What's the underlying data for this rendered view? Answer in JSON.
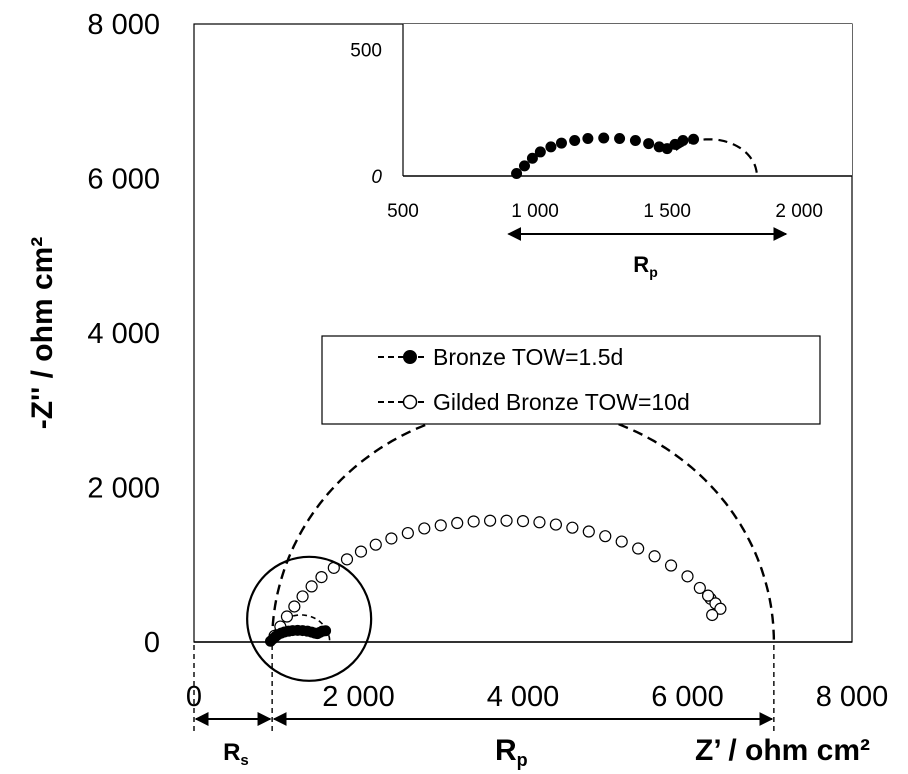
{
  "chart_data": {
    "type": "scatter",
    "xlabel": "Z’ / ohm cm²",
    "ylabel": "-Z'' / ohm cm²",
    "xlim": [
      0,
      8000
    ],
    "ylim": [
      0,
      8000
    ],
    "x_ticks": [
      0,
      2000,
      4000,
      6000,
      8000
    ],
    "y_ticks": [
      0,
      2000,
      4000,
      6000,
      8000
    ],
    "x_tick_labels": [
      "0",
      "2 000",
      "4 000",
      "6 000",
      "8 000"
    ],
    "y_tick_labels": [
      "0",
      "2 000",
      "4 000",
      "6 000",
      "8 000"
    ],
    "legend_position": "center-right",
    "series": [
      {
        "name": "Bronze TOW=1.5d",
        "marker": "filled-circle",
        "color": "#000000",
        "x": [
          930,
          960,
          990,
          1020,
          1060,
          1100,
          1150,
          1200,
          1260,
          1320,
          1380,
          1430,
          1470,
          1500,
          1530,
          1560,
          1600
        ],
        "y": [
          10,
          40,
          70,
          95,
          115,
          130,
          140,
          148,
          150,
          148,
          140,
          128,
          115,
          108,
          125,
          140,
          145
        ]
      },
      {
        "name": "Gilded Bronze TOW=10d",
        "marker": "open-circle",
        "color": "#000000",
        "x": [
          980,
          1050,
          1130,
          1220,
          1320,
          1430,
          1550,
          1700,
          1860,
          2030,
          2210,
          2400,
          2600,
          2800,
          3000,
          3200,
          3400,
          3600,
          3800,
          4000,
          4200,
          4400,
          4600,
          4800,
          5000,
          5200,
          5400,
          5600,
          5800,
          6000,
          6150,
          6280,
          6340,
          6400,
          6300,
          6250
        ],
        "y": [
          80,
          200,
          330,
          460,
          590,
          720,
          840,
          960,
          1070,
          1170,
          1260,
          1340,
          1410,
          1470,
          1510,
          1540,
          1560,
          1570,
          1570,
          1565,
          1550,
          1520,
          1480,
          1430,
          1370,
          1300,
          1210,
          1110,
          990,
          850,
          700,
          560,
          500,
          430,
          350,
          600
        ]
      }
    ],
    "fit_curves": [
      {
        "series": "Bronze TOW=1.5d",
        "style": "dashed",
        "x_range": [
          1480,
          1830
        ]
      },
      {
        "series": "Gilded Bronze TOW=10d",
        "style": "dashed",
        "x_range": [
          950,
          7050
        ]
      }
    ],
    "annotations": {
      "circle_center": [
        1400,
        300
      ],
      "Rs_label": "R",
      "Rs_sub": "s",
      "Rp_label": "R",
      "Rp_sub": "p",
      "Rs_range": [
        0,
        950
      ],
      "Rp_range": [
        950,
        7050
      ]
    },
    "inset": {
      "xlim": [
        500,
        2200
      ],
      "ylim": [
        0,
        600
      ],
      "x_ticks": [
        500,
        1000,
        1500,
        2000
      ],
      "y_ticks": [
        0,
        500
      ],
      "x_tick_labels": [
        "500",
        "1 000",
        "1 500",
        "2 000"
      ],
      "y_tick_labels": [
        "0",
        "500"
      ],
      "Rp_label": "R",
      "Rp_sub": "p",
      "Rp_range": [
        900,
        1950
      ]
    }
  }
}
